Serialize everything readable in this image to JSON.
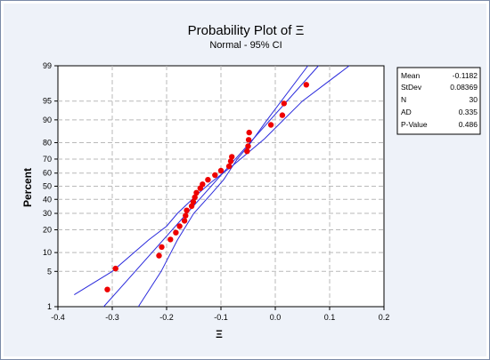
{
  "chart_data": {
    "type": "scatter",
    "title": "Probability Plot of Ξ",
    "subtitle": "Normal - 95% CI",
    "xlabel": "Ξ",
    "ylabel": "Percent",
    "xlim": [
      -0.4,
      0.2
    ],
    "x_ticks": [
      "-0.4",
      "-0.3",
      "-0.2",
      "-0.1",
      "0.0",
      "0.1",
      "0.2"
    ],
    "x_tick_values": [
      -0.4,
      -0.3,
      -0.2,
      -0.1,
      0.0,
      0.1,
      0.2
    ],
    "y_scale": "normal-probability",
    "y_ticks": [
      "1",
      "5",
      "10",
      "20",
      "30",
      "40",
      "50",
      "60",
      "70",
      "80",
      "90",
      "95",
      "99"
    ],
    "y_tick_values": [
      1,
      5,
      10,
      20,
      30,
      40,
      50,
      60,
      70,
      80,
      90,
      95,
      99
    ],
    "grid": true,
    "legend": "none",
    "fit_color": "#2b2bdc",
    "point_color": "#ee0000",
    "points": [
      {
        "x": -0.309,
        "y": 2.3
      },
      {
        "x": -0.294,
        "y": 5.6
      },
      {
        "x": -0.214,
        "y": 9.0
      },
      {
        "x": -0.209,
        "y": 12.0
      },
      {
        "x": -0.193,
        "y": 15.2
      },
      {
        "x": -0.183,
        "y": 18.5
      },
      {
        "x": -0.176,
        "y": 22.0
      },
      {
        "x": -0.167,
        "y": 25.2
      },
      {
        "x": -0.165,
        "y": 28.5
      },
      {
        "x": -0.163,
        "y": 32.0
      },
      {
        "x": -0.154,
        "y": 35.0
      },
      {
        "x": -0.151,
        "y": 38.2
      },
      {
        "x": -0.148,
        "y": 41.5
      },
      {
        "x": -0.145,
        "y": 45.0
      },
      {
        "x": -0.138,
        "y": 48.5
      },
      {
        "x": -0.134,
        "y": 51.5
      },
      {
        "x": -0.124,
        "y": 55.0
      },
      {
        "x": -0.111,
        "y": 58.5
      },
      {
        "x": -0.1,
        "y": 61.8
      },
      {
        "x": -0.085,
        "y": 65.0
      },
      {
        "x": -0.082,
        "y": 68.5
      },
      {
        "x": -0.08,
        "y": 71.5
      },
      {
        "x": -0.052,
        "y": 75.0
      },
      {
        "x": -0.05,
        "y": 78.0
      },
      {
        "x": -0.049,
        "y": 81.5
      },
      {
        "x": -0.048,
        "y": 85.0
      },
      {
        "x": -0.008,
        "y": 88.2
      },
      {
        "x": 0.013,
        "y": 91.5
      },
      {
        "x": 0.016,
        "y": 94.5
      },
      {
        "x": 0.057,
        "y": 97.5
      }
    ],
    "fit_line": [
      {
        "x": -0.3158,
        "y": 1
      },
      {
        "x": 0.0795,
        "y": 99
      }
    ],
    "ci_lower": [
      {
        "x": -0.37,
        "y": 1.8
      },
      {
        "x": -0.3,
        "y": 5
      },
      {
        "x": -0.233,
        "y": 15
      },
      {
        "x": -0.2,
        "y": 22
      },
      {
        "x": -0.18,
        "y": 30
      },
      {
        "x": -0.14,
        "y": 45
      },
      {
        "x": -0.118,
        "y": 53
      },
      {
        "x": -0.08,
        "y": 65
      },
      {
        "x": -0.02,
        "y": 82
      },
      {
        "x": 0.05,
        "y": 95
      },
      {
        "x": 0.136,
        "y": 99
      }
    ],
    "ci_upper": [
      {
        "x": -0.252,
        "y": 1
      },
      {
        "x": -0.21,
        "y": 5
      },
      {
        "x": -0.18,
        "y": 15
      },
      {
        "x": -0.15,
        "y": 30
      },
      {
        "x": -0.118,
        "y": 44
      },
      {
        "x": -0.095,
        "y": 55
      },
      {
        "x": -0.07,
        "y": 70
      },
      {
        "x": -0.05,
        "y": 78
      },
      {
        "x": -0.015,
        "y": 90
      },
      {
        "x": 0.06,
        "y": 99
      }
    ]
  },
  "stats": [
    {
      "label": "Mean",
      "value": "-0.1182"
    },
    {
      "label": "StDev",
      "value": "0.08369"
    },
    {
      "label": "N",
      "value": "30"
    },
    {
      "label": "AD",
      "value": "0.335"
    },
    {
      "label": "P-Value",
      "value": "0.486"
    }
  ]
}
